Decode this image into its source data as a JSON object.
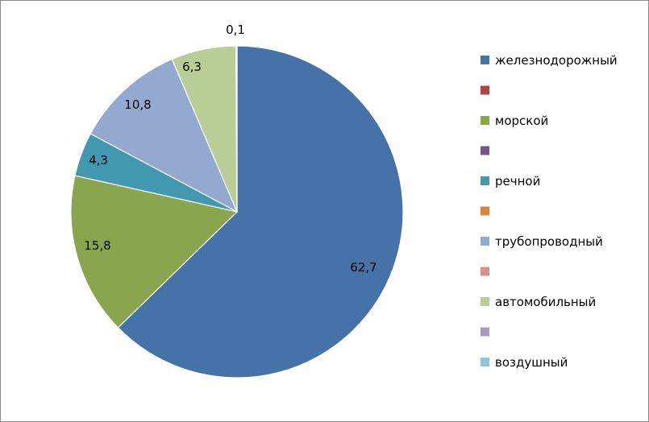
{
  "chart_data": {
    "type": "pie",
    "categories": [
      "железнодорожный",
      "",
      "морской",
      "",
      "речной",
      "",
      "трубопроводный",
      "",
      "автомобильный",
      "",
      "воздушный"
    ],
    "values": [
      62.7,
      0,
      15.8,
      0,
      4.3,
      0,
      10.8,
      0,
      6.3,
      0,
      0.1
    ],
    "data_labels": [
      "62,7",
      "",
      "15,8",
      "",
      "4,3",
      "",
      "10,8",
      "",
      "6,3",
      "",
      "0,1"
    ],
    "colors": [
      "#4572A7",
      "#AA4643",
      "#89A54E",
      "#71588F",
      "#4198AF",
      "#DB843D",
      "#93A9CF",
      "#D19392",
      "#B9CD96",
      "#A99BBD",
      "#92C5D4"
    ],
    "legend_position": "right",
    "start_angle_deg": 0,
    "direction": "clockwise"
  }
}
